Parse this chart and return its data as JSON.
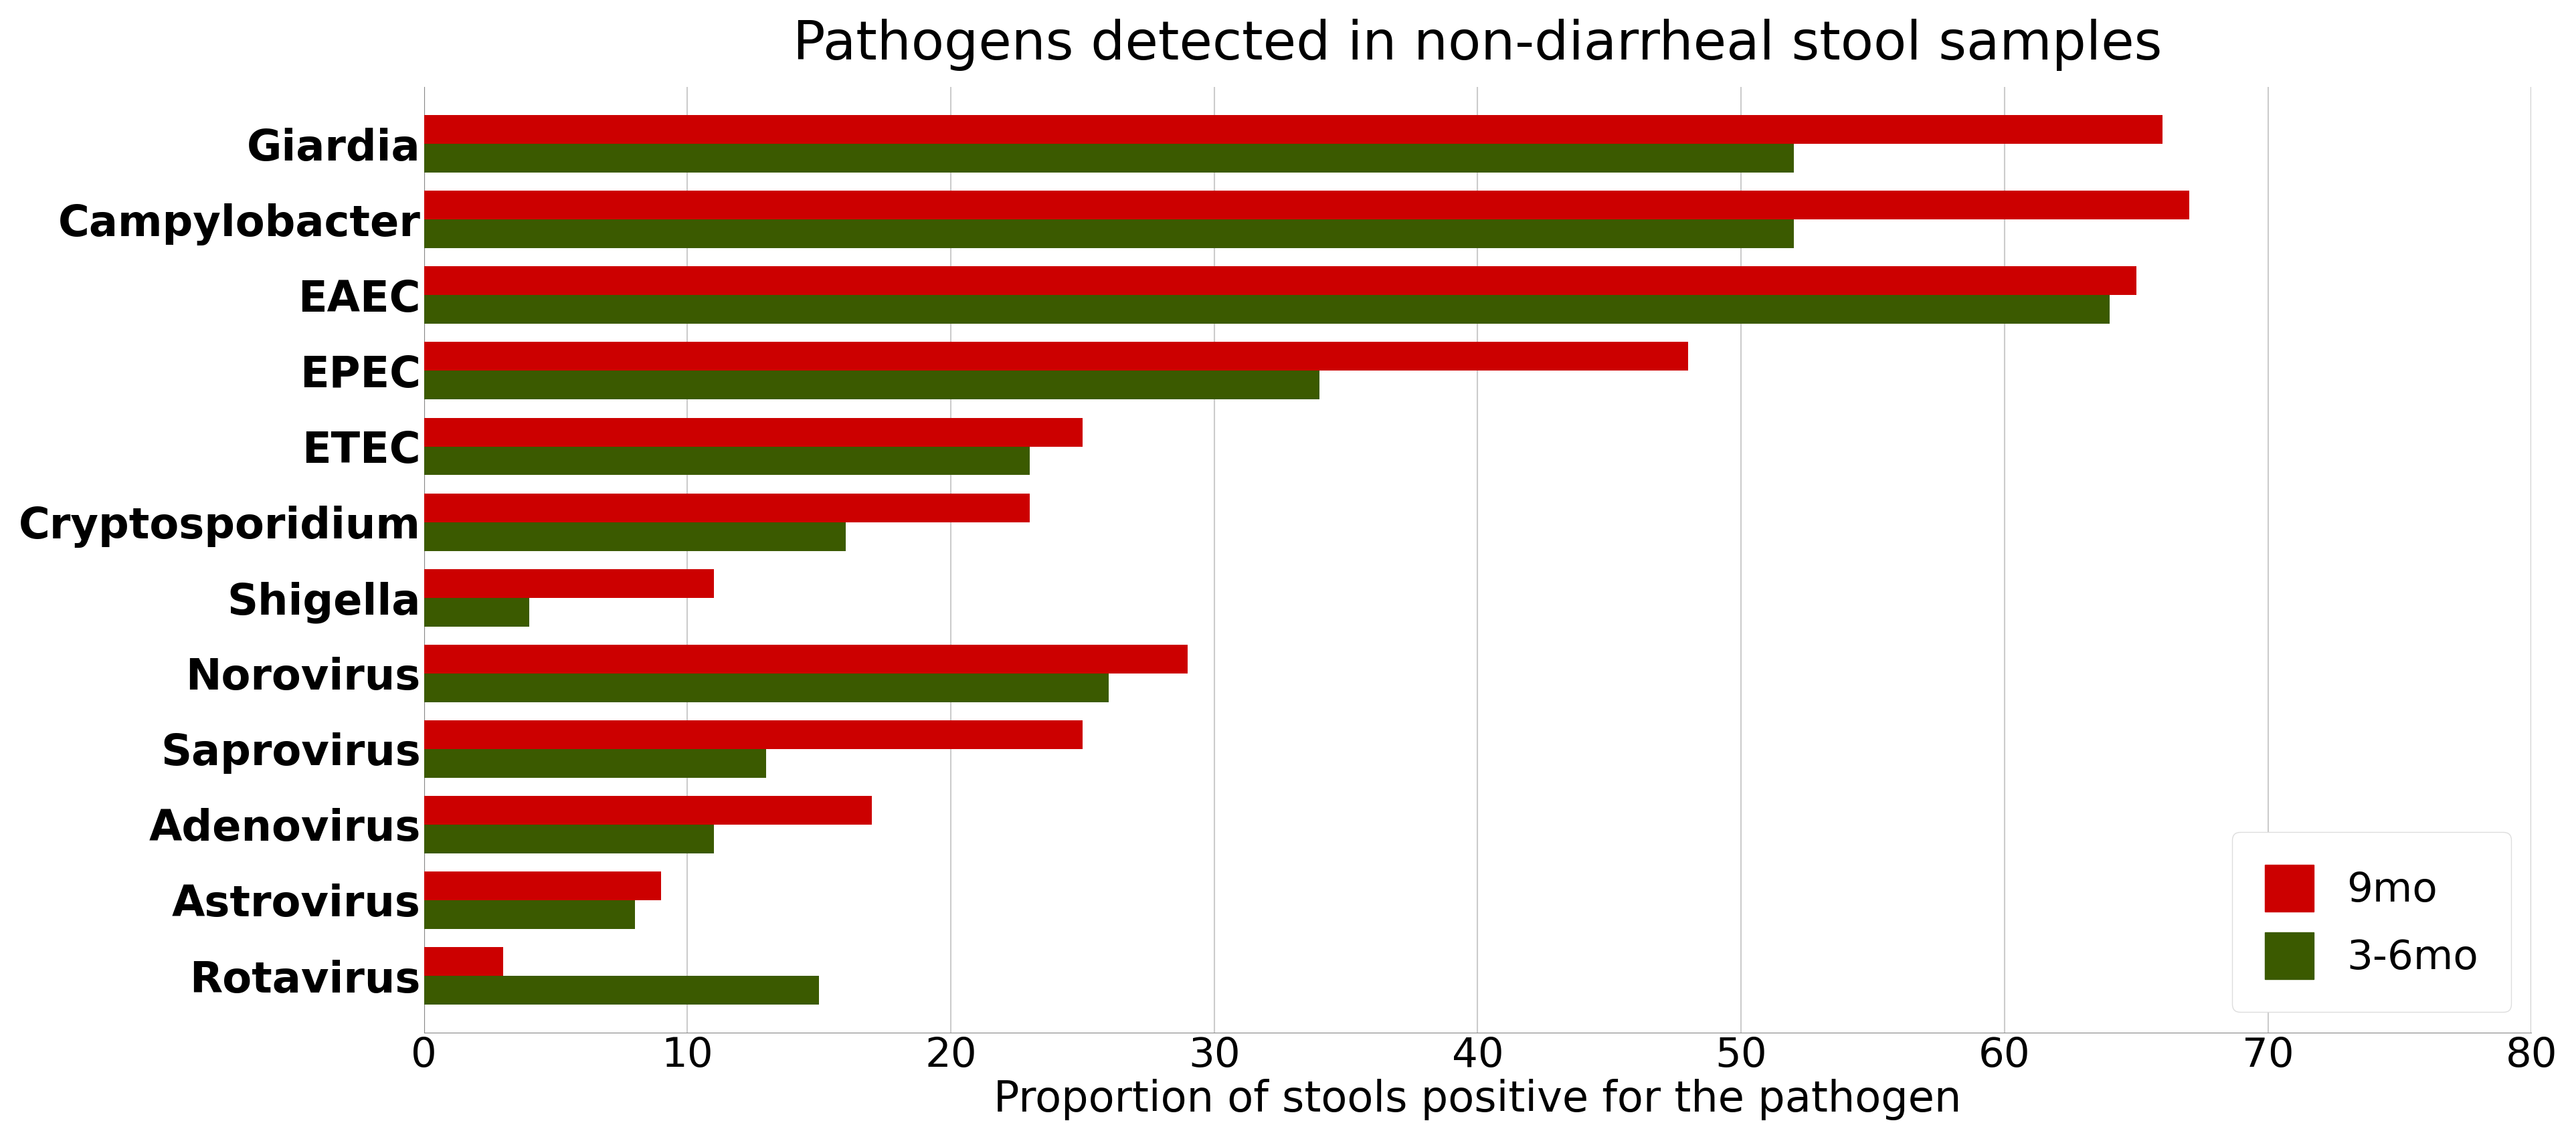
{
  "title": "Pathogens detected in non-diarrheal stool samples",
  "xlabel": "Proportion of stools positive for the pathogen",
  "categories": [
    "Rotavirus",
    "Astrovirus",
    "Adenovirus",
    "Saprovirus",
    "Norovirus",
    "Shigella",
    "Cryptosporidium",
    "ETEC",
    "EPEC",
    "EAEC",
    "Campylobacter",
    "Giardia"
  ],
  "values_9mo": [
    3,
    9,
    17,
    25,
    29,
    11,
    23,
    25,
    48,
    65,
    67,
    66
  ],
  "values_3_6mo": [
    15,
    8,
    11,
    13,
    26,
    4,
    16,
    23,
    34,
    64,
    52,
    52
  ],
  "color_9mo": "#CC0000",
  "color_3_6mo": "#3B5A00",
  "xlim": [
    0,
    80
  ],
  "xticks": [
    0,
    10,
    20,
    30,
    40,
    50,
    60,
    70,
    80
  ],
  "background_color": "#FFFFFF",
  "title_fontsize": 58,
  "label_fontsize": 46,
  "tick_fontsize": 44,
  "category_fontsize": 46,
  "legend_fontsize": 44,
  "bar_height": 0.38,
  "grid_color": "#CCCCCC"
}
